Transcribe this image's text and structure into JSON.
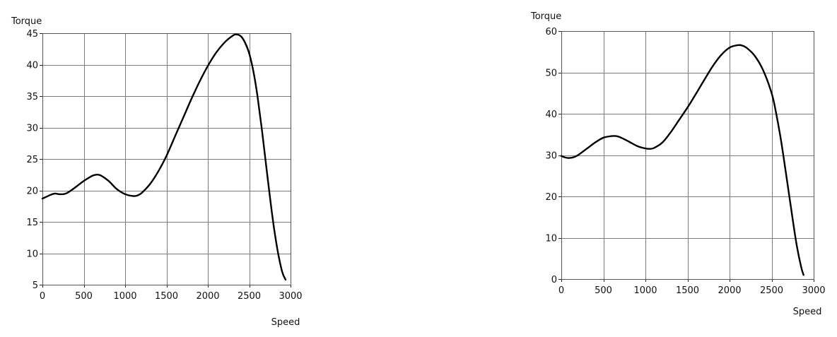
{
  "chart_data": [
    {
      "type": "line",
      "title": "",
      "xlabel": "Speed",
      "ylabel": "Torque",
      "xlim": [
        0,
        3000
      ],
      "ylim": [
        5,
        45
      ],
      "xticks": [
        0,
        500,
        1000,
        1500,
        2000,
        2500,
        3000
      ],
      "yticks": [
        5,
        10,
        15,
        20,
        25,
        30,
        35,
        40,
        45
      ],
      "grid": true,
      "series": [
        {
          "x": [
            0,
            50,
            100,
            150,
            200,
            250,
            300,
            400,
            500,
            600,
            650,
            700,
            800,
            900,
            1000,
            1100,
            1150,
            1200,
            1300,
            1400,
            1500,
            1600,
            1700,
            1800,
            1900,
            2000,
            2100,
            2200,
            2300,
            2350,
            2400,
            2450,
            2500,
            2550,
            2600,
            2650,
            2700,
            2750,
            2800,
            2850,
            2900,
            2940
          ],
          "y": [
            18.7,
            19.0,
            19.3,
            19.5,
            19.4,
            19.4,
            19.6,
            20.5,
            21.5,
            22.3,
            22.5,
            22.4,
            21.5,
            20.2,
            19.4,
            19.1,
            19.2,
            19.6,
            21.0,
            23.0,
            25.5,
            28.5,
            31.5,
            34.5,
            37.3,
            39.8,
            41.9,
            43.5,
            44.6,
            44.8,
            44.5,
            43.5,
            41.8,
            39.0,
            35.0,
            30.0,
            24.5,
            19.0,
            14.0,
            10.0,
            7.0,
            5.8
          ]
        }
      ]
    },
    {
      "type": "line",
      "title": "",
      "xlabel": "Speed",
      "ylabel": "Torque",
      "xlim": [
        0,
        3000
      ],
      "ylim": [
        0,
        60
      ],
      "xticks": [
        0,
        500,
        1000,
        1500,
        2000,
        2500,
        3000
      ],
      "yticks": [
        0,
        10,
        20,
        30,
        40,
        50,
        60
      ],
      "grid": true,
      "series": [
        {
          "x": [
            0,
            50,
            100,
            150,
            200,
            300,
            400,
            500,
            600,
            650,
            700,
            800,
            900,
            1000,
            1050,
            1100,
            1200,
            1300,
            1400,
            1500,
            1600,
            1700,
            1800,
            1900,
            2000,
            2100,
            2150,
            2200,
            2300,
            2400,
            2500,
            2550,
            2600,
            2650,
            2700,
            2750,
            2800,
            2850,
            2880
          ],
          "y": [
            29.8,
            29.4,
            29.3,
            29.5,
            30.0,
            31.5,
            33.0,
            34.2,
            34.6,
            34.6,
            34.3,
            33.3,
            32.2,
            31.6,
            31.5,
            31.7,
            33.0,
            35.5,
            38.5,
            41.5,
            44.8,
            48.2,
            51.5,
            54.2,
            56.0,
            56.6,
            56.5,
            56.0,
            54.0,
            50.5,
            45.0,
            40.5,
            35.0,
            28.5,
            21.5,
            14.5,
            8.0,
            3.0,
            1.0
          ]
        }
      ]
    }
  ]
}
